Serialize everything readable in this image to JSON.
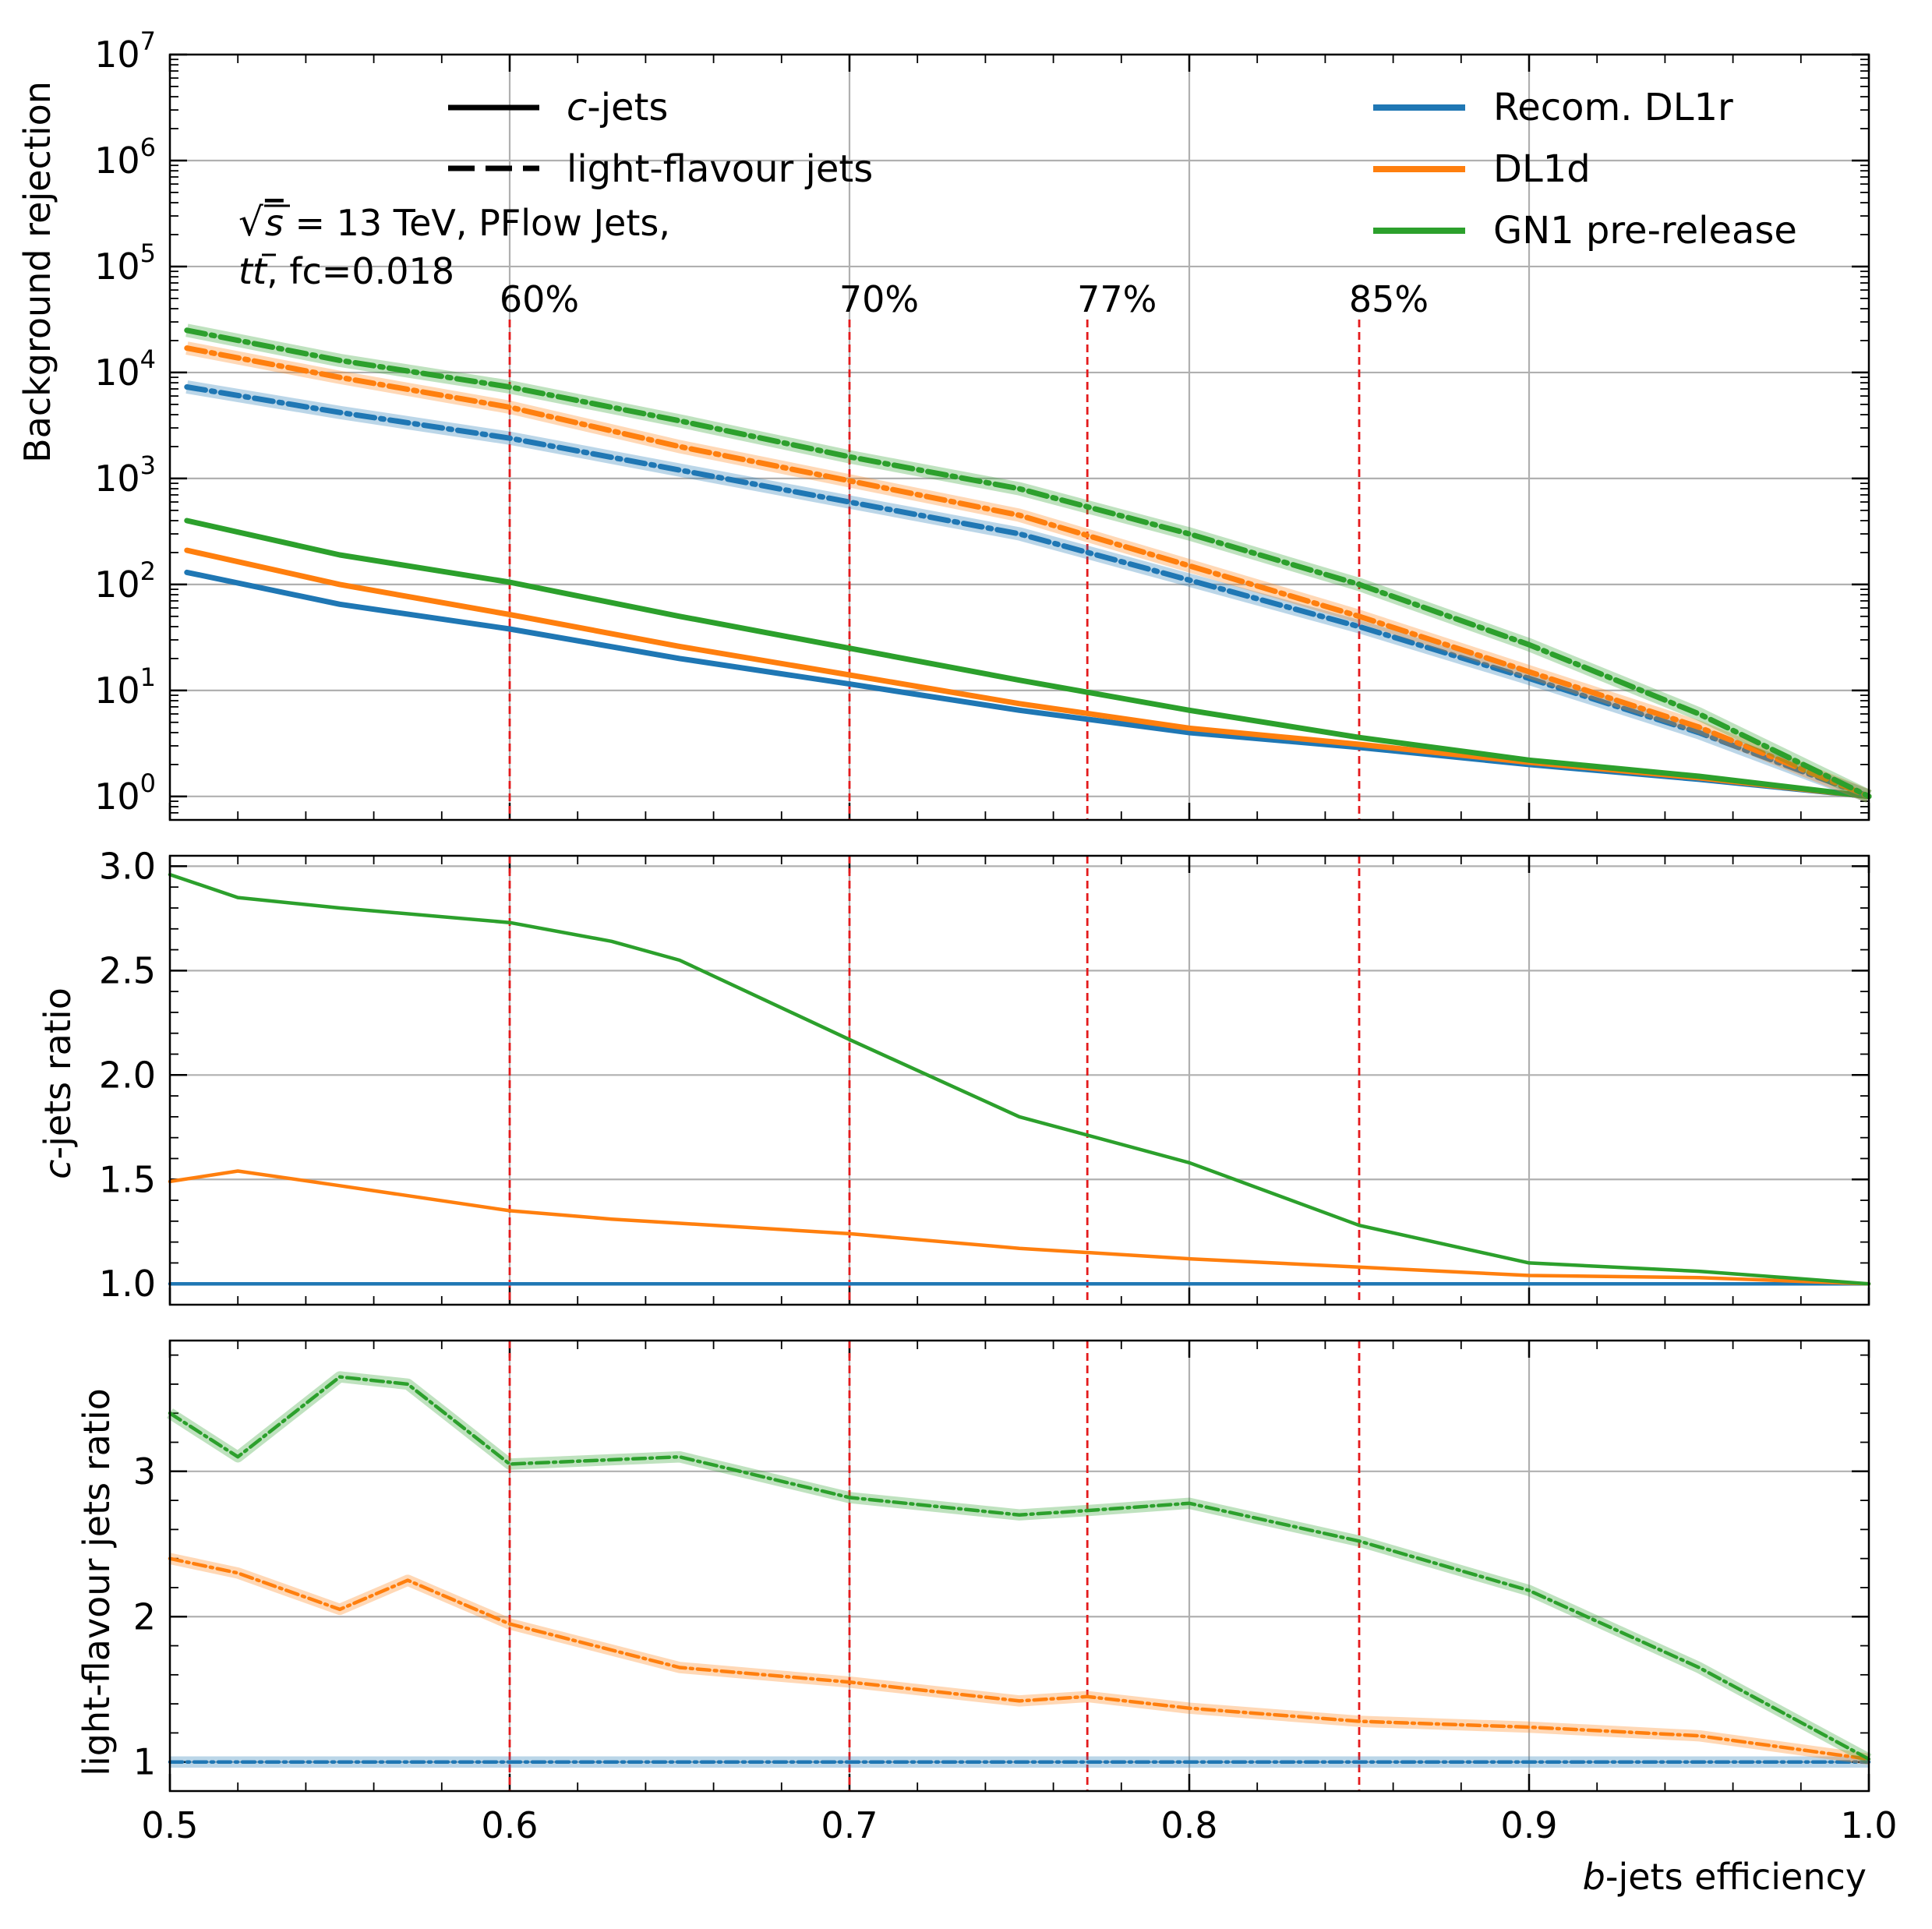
{
  "chart_data": {
    "type": "line",
    "xlabel_italic": "b",
    "xlabel_rest": "-jets efficiency",
    "xlim": [
      0.5,
      1.0
    ],
    "xticks": [
      "0.5",
      "0.6",
      "0.7",
      "0.8",
      "0.9",
      "1.0"
    ],
    "colors": {
      "Recom. DL1r": "#1f77b4",
      "DL1d": "#ff7f0e",
      "GN1 pre-release": "#2ca02c",
      "wp_line": "#e41a1c"
    },
    "legend_styles": [
      {
        "label_italic": "c",
        "label_rest": "-jets",
        "style": "solid"
      },
      {
        "label_italic": "",
        "label_rest": "light-flavour jets",
        "style": "dashed"
      }
    ],
    "legend_models": [
      "Recom. DL1r",
      "DL1d",
      "GN1 pre-release"
    ],
    "annotation_line1_rest": " = 13 TeV, PFlow Jets,",
    "annotation_line2_rest": ", fc=0.018",
    "working_points": [
      {
        "x": 0.6,
        "label": "60%"
      },
      {
        "x": 0.7,
        "label": "70%"
      },
      {
        "x": 0.77,
        "label": "77%"
      },
      {
        "x": 0.85,
        "label": "85%"
      }
    ],
    "panels": [
      {
        "ylabel": "Background rejection",
        "yscale": "log",
        "ylim": [
          0.6,
          10000000
        ],
        "yticks": [
          1,
          10,
          100,
          1000,
          10000,
          100000,
          1000000,
          10000000
        ],
        "x": [
          0.505,
          0.55,
          0.6,
          0.65,
          0.7,
          0.75,
          0.8,
          0.85,
          0.9,
          0.95,
          1.0
        ],
        "series": [
          {
            "name": "Recom. DL1r",
            "kind": "c",
            "values": [
              130,
              65,
              38,
              20,
              11.5,
              6.5,
              4.0,
              2.9,
              2.0,
              1.45,
              1.0
            ]
          },
          {
            "name": "DL1d",
            "kind": "c",
            "values": [
              210,
              100,
              52,
              26,
              14,
              7.5,
              4.4,
              3.1,
              2.1,
              1.5,
              1.0
            ]
          },
          {
            "name": "GN1 pre-release",
            "kind": "c",
            "values": [
              400,
              190,
              105,
              50,
              25,
              12.5,
              6.5,
              3.6,
              2.2,
              1.55,
              1.0
            ]
          },
          {
            "name": "Recom. DL1r",
            "kind": "light",
            "values": [
              7300,
              4200,
              2400,
              1200,
              600,
              300,
              110,
              40,
              13,
              4.0,
              1.0
            ]
          },
          {
            "name": "DL1d",
            "kind": "light",
            "values": [
              17000,
              9000,
              4700,
              2000,
              950,
              450,
              150,
              50,
              15,
              4.5,
              1.0
            ]
          },
          {
            "name": "GN1 pre-release",
            "kind": "light",
            "values": [
              25000,
              13000,
              7300,
              3500,
              1600,
              800,
              300,
              100,
              27,
              6.0,
              1.0
            ]
          }
        ]
      },
      {
        "ylabel_italic": "c",
        "ylabel_rest": "-jets ratio",
        "yscale": "linear",
        "ylim": [
          0.9,
          3.05
        ],
        "yticks": [
          1.0,
          1.5,
          2.0,
          2.5,
          3.0
        ],
        "ytick_labels": [
          "1.0",
          "1.5",
          "2.0",
          "2.5",
          "3.0"
        ],
        "x": [
          0.5,
          0.52,
          0.55,
          0.6,
          0.63,
          0.65,
          0.7,
          0.75,
          0.8,
          0.85,
          0.9,
          0.95,
          1.0
        ],
        "series": [
          {
            "name": "Recom. DL1r",
            "kind": "c",
            "values": [
              1.0,
              1.0,
              1.0,
              1.0,
              1.0,
              1.0,
              1.0,
              1.0,
              1.0,
              1.0,
              1.0,
              1.0,
              1.0
            ]
          },
          {
            "name": "DL1d",
            "kind": "c",
            "values": [
              1.49,
              1.54,
              1.47,
              1.35,
              1.31,
              1.29,
              1.24,
              1.17,
              1.12,
              1.08,
              1.04,
              1.03,
              1.0
            ]
          },
          {
            "name": "GN1 pre-release",
            "kind": "c",
            "values": [
              2.96,
              2.85,
              2.8,
              2.73,
              2.64,
              2.55,
              2.17,
              1.8,
              1.58,
              1.28,
              1.1,
              1.06,
              1.0
            ]
          }
        ]
      },
      {
        "ylabel": "light-flavour jets ratio",
        "yscale": "linear",
        "ylim": [
          0.8,
          3.9
        ],
        "yticks": [
          1,
          2,
          3
        ],
        "ytick_labels": [
          "1",
          "2",
          "3"
        ],
        "x": [
          0.5,
          0.52,
          0.55,
          0.57,
          0.6,
          0.65,
          0.7,
          0.75,
          0.77,
          0.8,
          0.85,
          0.9,
          0.95,
          1.0
        ],
        "series": [
          {
            "name": "Recom. DL1r",
            "kind": "light",
            "values": [
              1.0,
              1.0,
              1.0,
              1.0,
              1.0,
              1.0,
              1.0,
              1.0,
              1.0,
              1.0,
              1.0,
              1.0,
              1.0,
              1.0
            ]
          },
          {
            "name": "DL1d",
            "kind": "light",
            "values": [
              2.4,
              2.3,
              2.05,
              2.25,
              1.95,
              1.65,
              1.55,
              1.42,
              1.45,
              1.37,
              1.28,
              1.24,
              1.18,
              1.02
            ]
          },
          {
            "name": "GN1 pre-release",
            "kind": "light",
            "values": [
              3.4,
              3.1,
              3.65,
              3.6,
              3.05,
              3.1,
              2.82,
              2.7,
              2.73,
              2.78,
              2.52,
              2.18,
              1.65,
              1.02
            ]
          }
        ]
      }
    ]
  }
}
